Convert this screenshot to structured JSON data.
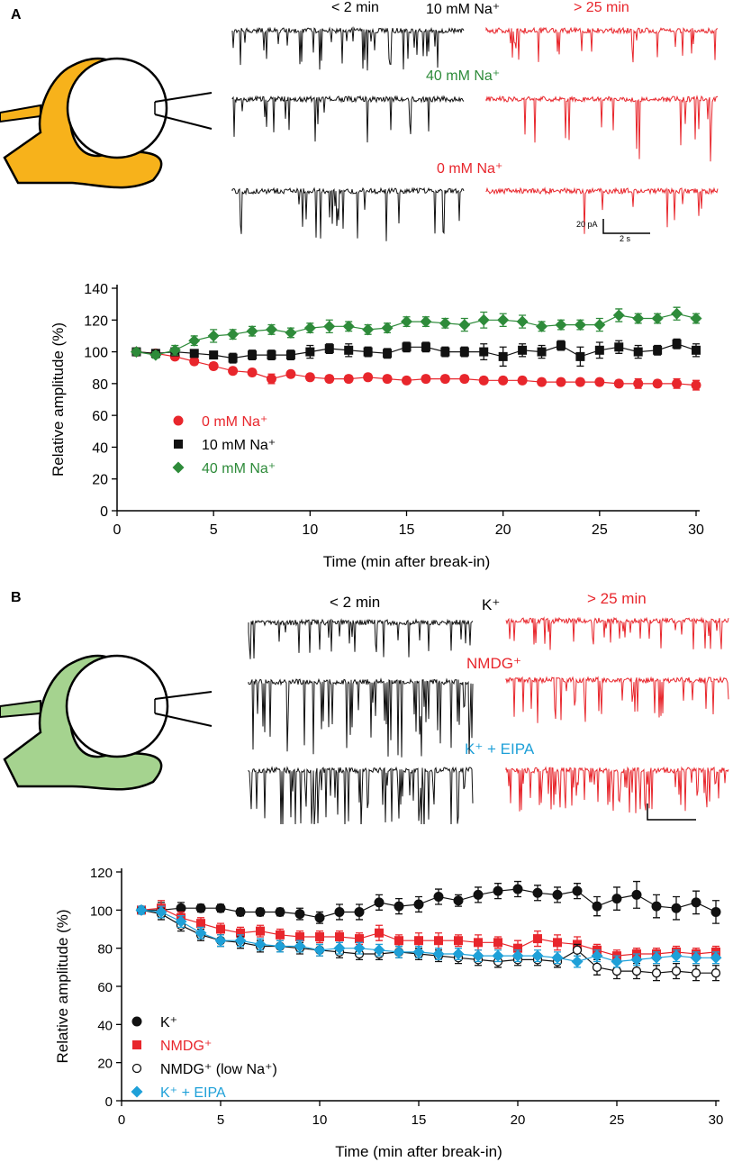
{
  "panel_a": {
    "letter": "A",
    "trace_labels": {
      "early": "< 2 min",
      "late": "> 25 min",
      "row1": "10 mM Na⁺",
      "row2": "40 mM Na⁺",
      "row3": "0 mM Na⁺"
    },
    "scale_bar": {
      "amp": "20 pA",
      "time": "2 s"
    }
  },
  "panel_b": {
    "letter": "B",
    "trace_labels": {
      "early": "< 2 min",
      "late": "> 25 min",
      "row1": "K⁺",
      "row2": "NMDG⁺",
      "row3": "K⁺ + EIPA"
    }
  },
  "colors": {
    "black": "#111111",
    "red": "#e8262c",
    "green": "#2e8b3a",
    "cyan": "#1ea0d8",
    "orange_cell": "#f7b21b",
    "green_cell": "#a5d38f"
  },
  "chart_data": [
    {
      "id": "chartA",
      "type": "scatter",
      "xlabel": "Time (min after break-in)",
      "ylabel": "Relative amplitude (%)",
      "xlim": [
        0,
        30
      ],
      "ylim": [
        0,
        140
      ],
      "xticks": [
        0,
        5,
        10,
        15,
        20,
        25,
        30
      ],
      "yticks": [
        0,
        20,
        40,
        60,
        80,
        100,
        120,
        140
      ],
      "legend_position": "lower-left",
      "series": [
        {
          "name": "0 mM Na⁺",
          "color": "#e8262c",
          "marker": "circle",
          "x": [
            1,
            2,
            3,
            4,
            5,
            6,
            7,
            8,
            9,
            10,
            11,
            12,
            13,
            14,
            15,
            16,
            17,
            18,
            19,
            20,
            21,
            22,
            23,
            24,
            25,
            26,
            27,
            28,
            29,
            30
          ],
          "y": [
            100,
            99,
            97,
            94,
            91,
            88,
            87,
            83,
            86,
            84,
            83,
            83,
            84,
            83,
            82,
            83,
            83,
            83,
            82,
            82,
            82,
            81,
            81,
            81,
            81,
            80,
            80,
            80,
            80,
            79
          ],
          "err": [
            2,
            2,
            2,
            2,
            2,
            2,
            2,
            3,
            2,
            2,
            2,
            2,
            2,
            2,
            2,
            2,
            2,
            2,
            2,
            2,
            2,
            2,
            2,
            2,
            2,
            2,
            3,
            2,
            3,
            3
          ]
        },
        {
          "name": "10 mM Na⁺",
          "color": "#111111",
          "marker": "square",
          "x": [
            1,
            2,
            3,
            4,
            5,
            6,
            7,
            8,
            9,
            10,
            11,
            12,
            13,
            14,
            15,
            16,
            17,
            18,
            19,
            20,
            21,
            22,
            23,
            24,
            25,
            26,
            27,
            28,
            29,
            30
          ],
          "y": [
            100,
            99,
            100,
            99,
            98,
            96,
            98,
            98,
            98,
            100,
            102,
            101,
            100,
            99,
            103,
            103,
            100,
            100,
            100,
            97,
            101,
            100,
            104,
            97,
            101,
            103,
            100,
            101,
            105,
            101
          ],
          "err": [
            2,
            2,
            2,
            2,
            2,
            3,
            3,
            3,
            3,
            4,
            3,
            4,
            3,
            3,
            3,
            3,
            3,
            3,
            5,
            6,
            4,
            4,
            3,
            6,
            5,
            4,
            4,
            3,
            3,
            4
          ]
        },
        {
          "name": "40 mM Na⁺",
          "color": "#2e8b3a",
          "marker": "diamond",
          "x": [
            1,
            2,
            3,
            4,
            5,
            6,
            7,
            8,
            9,
            10,
            11,
            12,
            13,
            14,
            15,
            16,
            17,
            18,
            19,
            20,
            21,
            22,
            23,
            24,
            25,
            26,
            27,
            28,
            29,
            30
          ],
          "y": [
            100,
            98,
            101,
            107,
            110,
            111,
            113,
            114,
            112,
            115,
            116,
            116,
            114,
            115,
            119,
            119,
            118,
            117,
            120,
            120,
            119,
            116,
            117,
            117,
            117,
            123,
            121,
            121,
            124,
            121
          ],
          "err": [
            2,
            2,
            3,
            3,
            4,
            3,
            3,
            3,
            3,
            3,
            4,
            3,
            3,
            3,
            3,
            3,
            3,
            4,
            5,
            4,
            4,
            3,
            3,
            3,
            4,
            4,
            3,
            3,
            4,
            3
          ]
        }
      ]
    },
    {
      "id": "chartB",
      "type": "scatter",
      "xlabel": "Time (min after break-in)",
      "ylabel": "Relative amplitude (%)",
      "xlim": [
        0,
        30
      ],
      "ylim": [
        0,
        120
      ],
      "xticks": [
        0,
        5,
        10,
        15,
        20,
        25,
        30
      ],
      "yticks": [
        0,
        20,
        40,
        60,
        80,
        100,
        120
      ],
      "legend_position": "lower-left",
      "series": [
        {
          "name": "K⁺",
          "color": "#111111",
          "marker": "circle",
          "x": [
            1,
            2,
            3,
            4,
            5,
            6,
            7,
            8,
            9,
            10,
            11,
            12,
            13,
            14,
            15,
            16,
            17,
            18,
            19,
            20,
            21,
            22,
            23,
            24,
            25,
            26,
            27,
            28,
            29,
            30
          ],
          "y": [
            100,
            100,
            101,
            101,
            101,
            99,
            99,
            99,
            98,
            96,
            99,
            99,
            104,
            102,
            103,
            107,
            105,
            108,
            110,
            111,
            109,
            108,
            110,
            102,
            106,
            108,
            102,
            101,
            104,
            99
          ],
          "err": [
            2,
            4,
            3,
            2,
            2,
            2,
            2,
            2,
            3,
            3,
            4,
            4,
            4,
            4,
            4,
            4,
            3,
            4,
            4,
            4,
            4,
            4,
            4,
            5,
            6,
            7,
            6,
            6,
            6,
            6
          ]
        },
        {
          "name": "NMDG⁺",
          "color": "#e8262c",
          "marker": "square",
          "x": [
            1,
            2,
            3,
            4,
            5,
            6,
            7,
            8,
            9,
            10,
            11,
            12,
            13,
            14,
            15,
            16,
            17,
            18,
            19,
            20,
            21,
            22,
            23,
            24,
            25,
            26,
            27,
            28,
            29,
            30
          ],
          "y": [
            100,
            101,
            96,
            93,
            90,
            88,
            89,
            87,
            86,
            86,
            86,
            85,
            88,
            84,
            84,
            84,
            84,
            83,
            83,
            80,
            85,
            83,
            82,
            79,
            76,
            77,
            77,
            78,
            77,
            78
          ],
          "err": [
            2,
            4,
            3,
            3,
            3,
            3,
            3,
            3,
            3,
            3,
            3,
            3,
            4,
            3,
            4,
            4,
            3,
            4,
            3,
            4,
            4,
            4,
            4,
            3,
            3,
            3,
            3,
            3,
            3,
            3
          ]
        },
        {
          "name": "NMDG⁺ (low Na⁺)",
          "color": "#111111",
          "marker": "open-circle",
          "x": [
            1,
            2,
            3,
            4,
            5,
            6,
            7,
            8,
            9,
            10,
            11,
            12,
            13,
            14,
            15,
            16,
            17,
            18,
            19,
            20,
            21,
            22,
            23,
            24,
            25,
            26,
            27,
            28,
            29,
            30
          ],
          "y": [
            100,
            98,
            92,
            87,
            84,
            83,
            81,
            81,
            80,
            79,
            78,
            77,
            77,
            78,
            77,
            76,
            75,
            74,
            73,
            74,
            74,
            73,
            79,
            70,
            68,
            68,
            67,
            68,
            67,
            67
          ],
          "err": [
            2,
            3,
            3,
            3,
            3,
            3,
            3,
            3,
            3,
            3,
            3,
            3,
            3,
            3,
            3,
            3,
            3,
            3,
            3,
            3,
            3,
            3,
            3,
            4,
            4,
            4,
            4,
            4,
            4,
            4
          ]
        },
        {
          "name": "K⁺ + EIPA",
          "color": "#1ea0d8",
          "marker": "diamond",
          "x": [
            1,
            2,
            3,
            4,
            5,
            6,
            7,
            8,
            9,
            10,
            11,
            12,
            13,
            14,
            15,
            16,
            17,
            18,
            19,
            20,
            21,
            22,
            23,
            24,
            25,
            26,
            27,
            28,
            29,
            30
          ],
          "y": [
            100,
            99,
            94,
            88,
            84,
            84,
            82,
            81,
            81,
            79,
            80,
            80,
            79,
            78,
            78,
            77,
            77,
            76,
            76,
            76,
            76,
            75,
            73,
            76,
            73,
            74,
            75,
            76,
            75,
            75
          ],
          "err": [
            2,
            3,
            3,
            3,
            3,
            3,
            3,
            3,
            3,
            3,
            3,
            3,
            3,
            3,
            3,
            3,
            3,
            3,
            3,
            3,
            3,
            3,
            3,
            3,
            3,
            3,
            3,
            3,
            3,
            3
          ]
        }
      ]
    }
  ]
}
